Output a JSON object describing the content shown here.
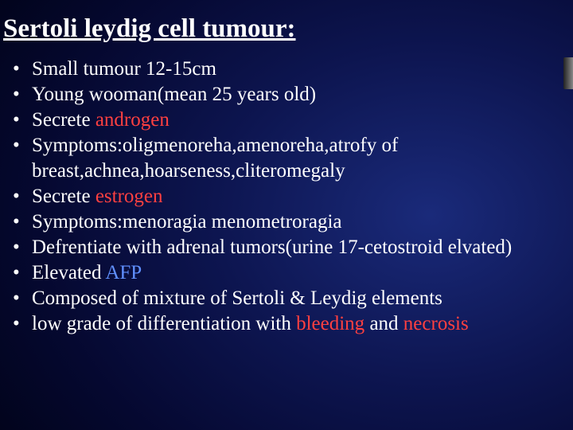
{
  "slide": {
    "title": "Sertoli leydig cell tumour:",
    "title_fontsize": 33,
    "title_color": "#ffffff",
    "title_underline": true,
    "body_fontsize": 25,
    "body_color": "#ffffff",
    "highlight_colors": {
      "androgen": "#ff4040",
      "estrogen": "#ff4040",
      "afp": "#6090ff",
      "bleeding": "#ff4040",
      "necrosis": "#ff4040"
    },
    "bullet_char": "•",
    "bullets": [
      {
        "segments": [
          {
            "text": "Small tumour 12-15cm"
          }
        ]
      },
      {
        "segments": [
          {
            "text": "Young wooman(mean 25 years old)"
          }
        ]
      },
      {
        "segments": [
          {
            "text": "Secrete "
          },
          {
            "text": "androgen",
            "color": "#ff4040"
          }
        ]
      },
      {
        "segments": [
          {
            "text": "Symptoms:oligmenoreha,amenoreha,atrofy of breast,achnea,hoarseness,cliteromegaly"
          }
        ]
      },
      {
        "segments": [
          {
            "text": "Secrete "
          },
          {
            "text": "estrogen",
            "color": "#ff4040"
          }
        ]
      },
      {
        "segments": [
          {
            "text": "Symptoms:menoragia menometroragia"
          }
        ]
      },
      {
        "segments": [
          {
            "text": "Defrentiate with adrenal tumors(urine 17-cetostroid elvated)"
          }
        ]
      },
      {
        "segments": [
          {
            "text": "Elevated "
          },
          {
            "text": "AFP",
            "color": "#6090ff"
          }
        ]
      },
      {
        "segments": [
          {
            "text": "Composed of mixture of  Sertoli & Leydig elements"
          }
        ]
      },
      {
        "segments": [
          {
            "text": "low grade of differentiation with "
          },
          {
            "text": "bleeding",
            "color": "#ff4040"
          },
          {
            "text": " and "
          },
          {
            "text": "necrosis",
            "color": "#ff4040"
          }
        ]
      }
    ],
    "background": {
      "type": "radial-gradient",
      "center_color": "#1a2a7a",
      "outer_color": "#000008"
    }
  }
}
